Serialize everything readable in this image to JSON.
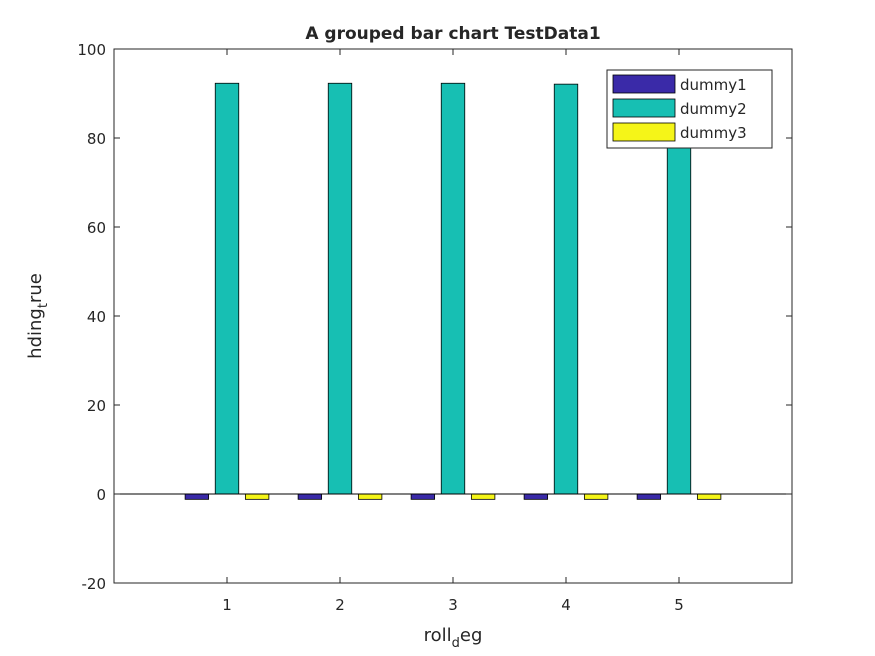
{
  "chart_data": {
    "type": "bar",
    "title": "A grouped bar chart TestData1",
    "xlabel": {
      "base": "roll",
      "sub": "d",
      "rest": "eg"
    },
    "ylabel": {
      "base": "hding",
      "sub": "t",
      "rest": "rue"
    },
    "categories": [
      "1",
      "2",
      "3",
      "4",
      "5"
    ],
    "x_ticks": [
      "1",
      "2",
      "3",
      "4",
      "5"
    ],
    "y_ticks": [
      "-20",
      "0",
      "20",
      "40",
      "60",
      "80",
      "100"
    ],
    "ylim": [
      -20,
      100
    ],
    "xlim": [
      0,
      6
    ],
    "series": [
      {
        "name": "dummy1",
        "color": "#3a2aa8",
        "values": [
          -1.2,
          -1.2,
          -1.2,
          -1.2,
          -1.2
        ]
      },
      {
        "name": "dummy2",
        "color": "#17bfb3",
        "values": [
          92.3,
          92.3,
          92.3,
          92.1,
          92.2
        ]
      },
      {
        "name": "dummy3",
        "color": "#f5f518",
        "values": [
          -1.2,
          -1.2,
          -1.2,
          -1.2,
          -1.2
        ]
      }
    ],
    "legend_position": "top-right",
    "grid": false
  }
}
